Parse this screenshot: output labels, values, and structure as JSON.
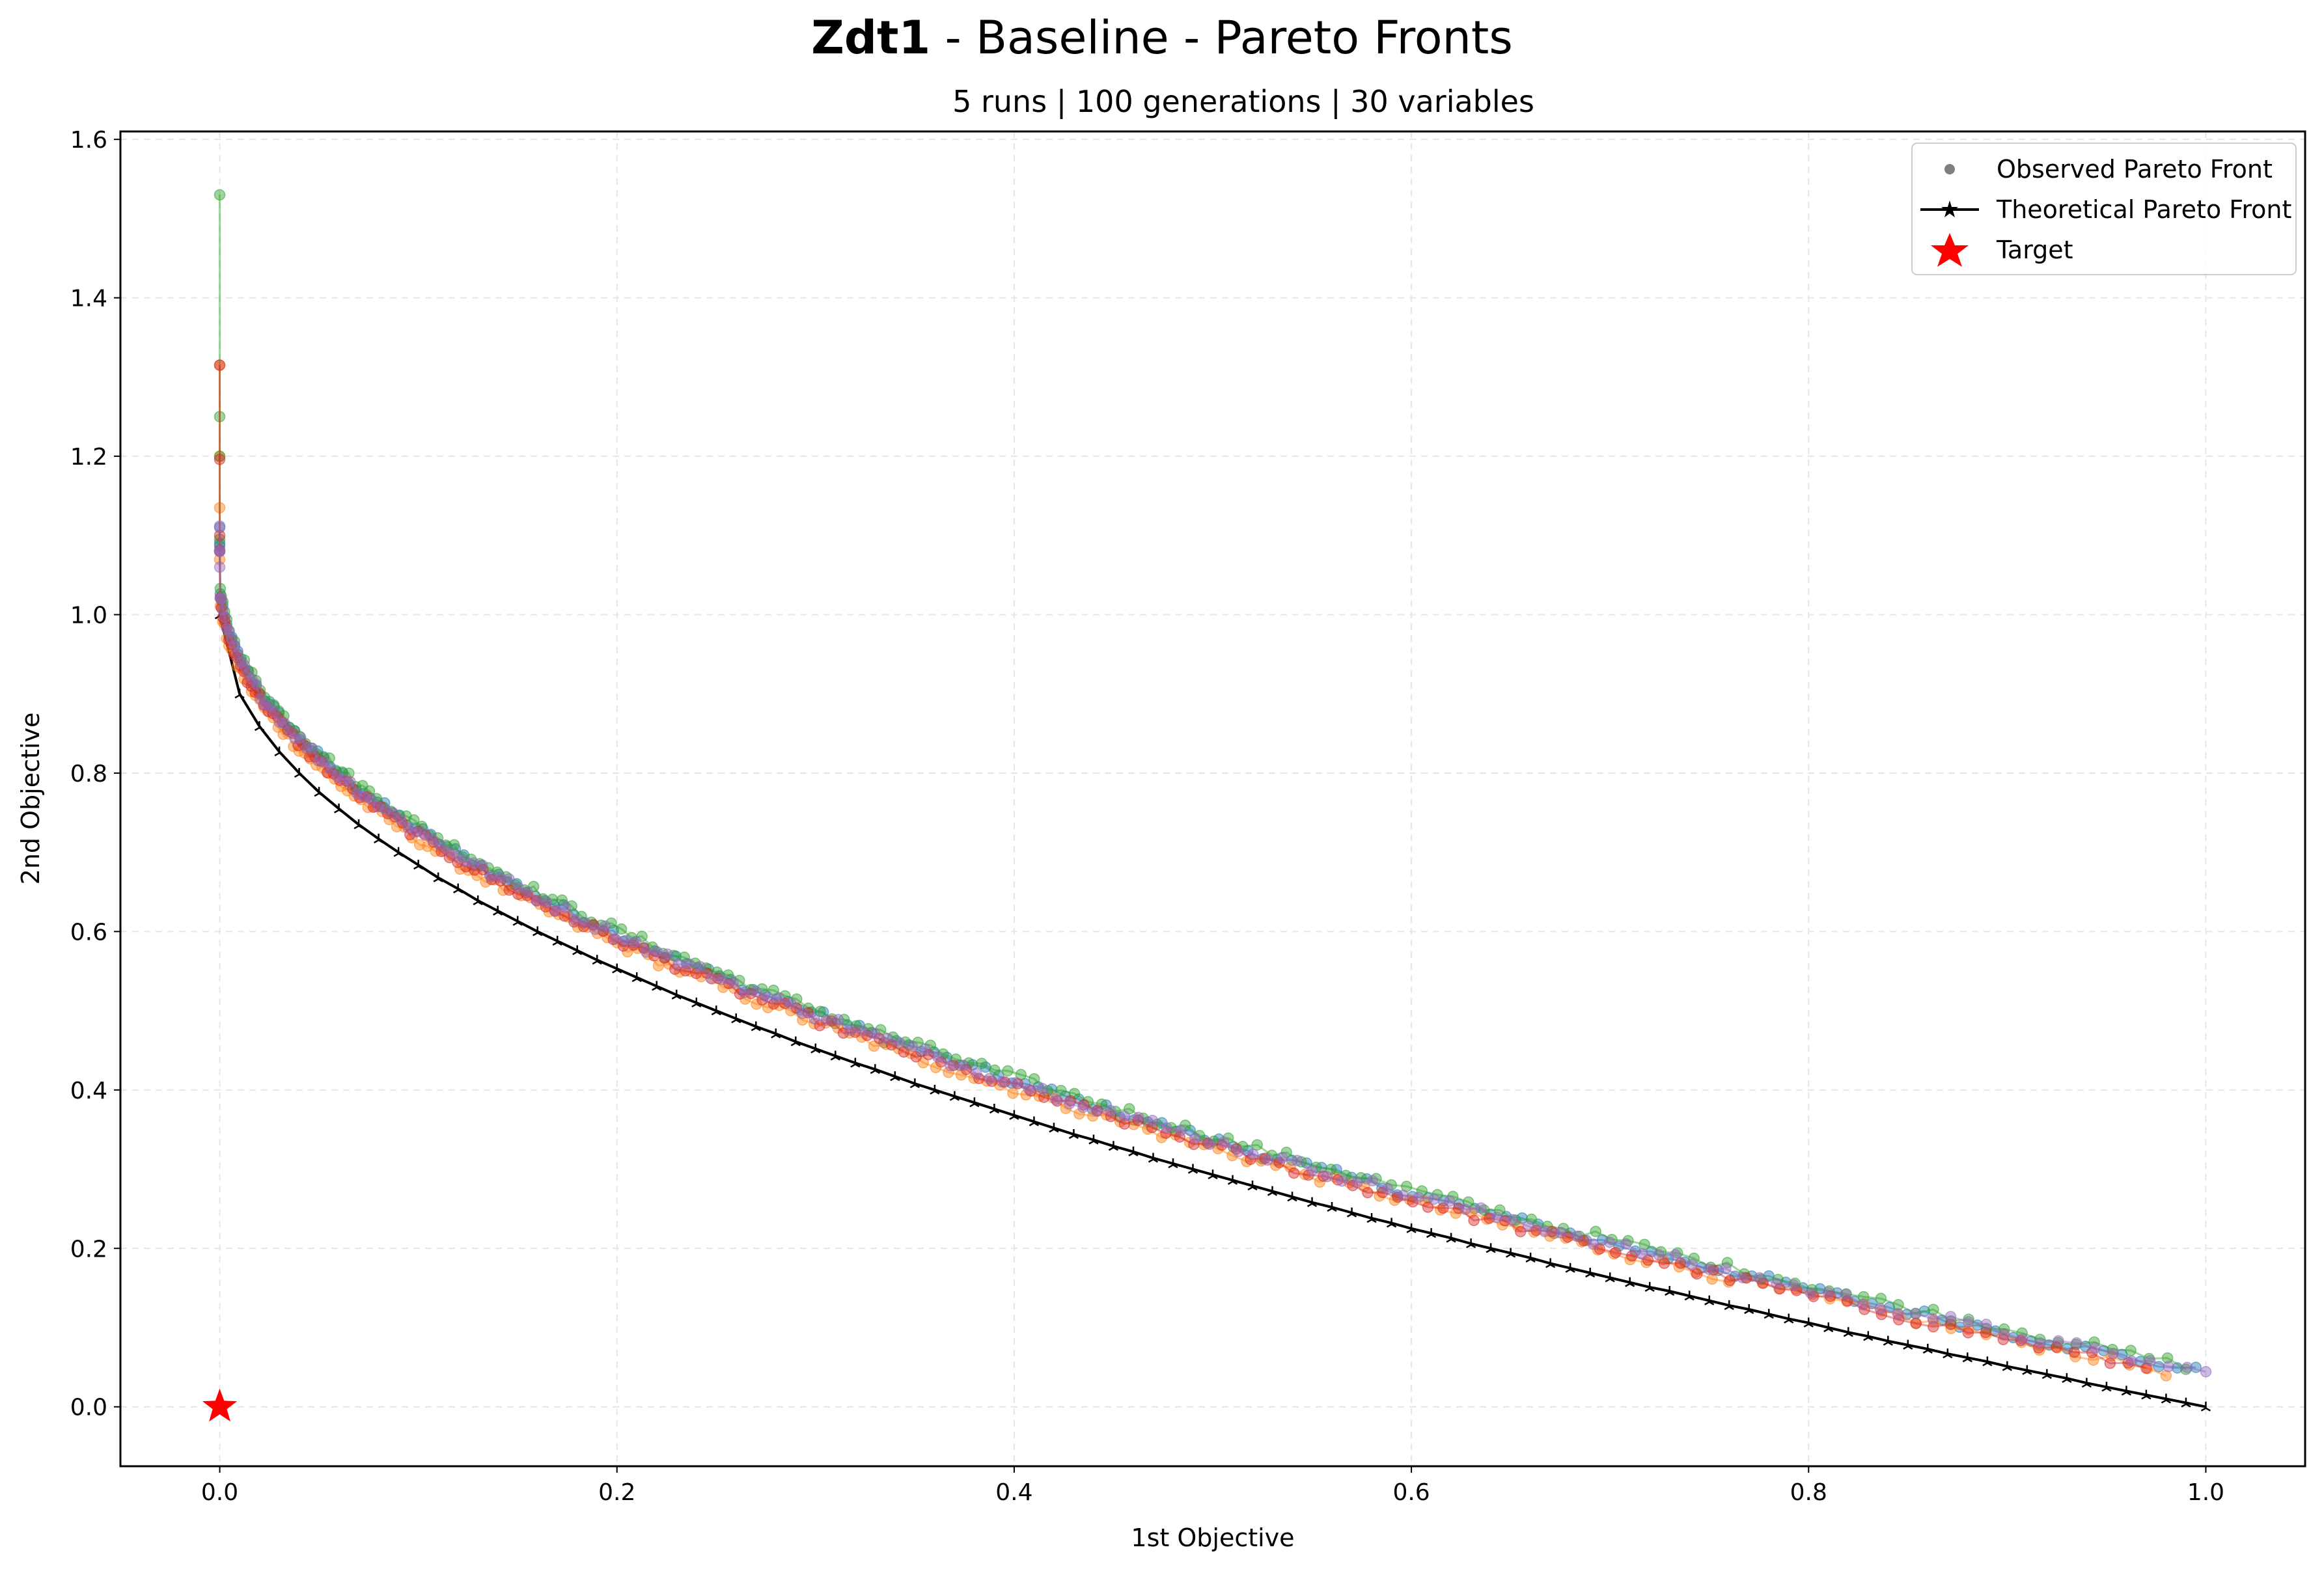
{
  "chart_data": {
    "type": "scatter",
    "title_bold": "Zdt1",
    "title_rest": " - Baseline - Pareto Fronts",
    "subtitle": "5 runs | 100 generations | 30 variables",
    "xlabel": "1st Objective",
    "ylabel": "2nd Objective",
    "xlim": [
      -0.05,
      1.05
    ],
    "ylim": [
      -0.075,
      1.61
    ],
    "xticks": [
      "0.0",
      "0.2",
      "0.4",
      "0.6",
      "0.8",
      "1.0"
    ],
    "yticks": [
      "0.0",
      "0.2",
      "0.4",
      "0.6",
      "0.8",
      "1.0",
      "1.2",
      "1.4",
      "1.6"
    ],
    "grid": true,
    "legend": {
      "position": "top-right",
      "observed": "Observed Pareto Front",
      "theoretical": "Theoretical Pareto Front",
      "target": "Target"
    },
    "target": {
      "x": 0.0,
      "y": 0.0,
      "color": "#ff0000"
    },
    "theoretical_front": {
      "color": "#000000",
      "x": [
        0,
        0.01,
        0.02,
        0.03,
        0.04,
        0.05,
        0.06,
        0.07,
        0.08,
        0.09,
        0.1,
        0.11,
        0.12,
        0.13,
        0.14,
        0.15,
        0.16,
        0.17,
        0.18,
        0.19,
        0.2,
        0.21,
        0.22,
        0.23,
        0.24,
        0.25,
        0.26,
        0.27,
        0.28,
        0.29,
        0.3,
        0.31,
        0.32,
        0.33,
        0.34,
        0.35,
        0.36,
        0.37,
        0.38,
        0.39,
        0.4,
        0.41,
        0.42,
        0.43,
        0.44,
        0.45,
        0.46,
        0.47,
        0.48,
        0.49,
        0.5,
        0.51,
        0.52,
        0.53,
        0.54,
        0.55,
        0.56,
        0.57,
        0.58,
        0.59,
        0.6,
        0.61,
        0.62,
        0.63,
        0.64,
        0.65,
        0.66,
        0.67,
        0.68,
        0.69,
        0.7,
        0.71,
        0.72,
        0.73,
        0.74,
        0.75,
        0.76,
        0.77,
        0.78,
        0.79,
        0.8,
        0.81,
        0.82,
        0.83,
        0.84,
        0.85,
        0.86,
        0.87,
        0.88,
        0.89,
        0.9,
        0.91,
        0.92,
        0.93,
        0.94,
        0.95,
        0.96,
        0.97,
        0.98,
        0.99,
        1.0
      ],
      "y": [
        1.0,
        0.9,
        0.859,
        0.827,
        0.8,
        0.776,
        0.755,
        0.735,
        0.717,
        0.7,
        0.684,
        0.668,
        0.654,
        0.639,
        0.626,
        0.613,
        0.6,
        0.588,
        0.576,
        0.564,
        0.553,
        0.542,
        0.531,
        0.52,
        0.51,
        0.5,
        0.49,
        0.48,
        0.471,
        0.461,
        0.452,
        0.443,
        0.434,
        0.426,
        0.417,
        0.408,
        0.4,
        0.392,
        0.384,
        0.376,
        0.368,
        0.36,
        0.352,
        0.344,
        0.337,
        0.329,
        0.322,
        0.314,
        0.307,
        0.3,
        0.293,
        0.286,
        0.279,
        0.272,
        0.265,
        0.258,
        0.252,
        0.245,
        0.238,
        0.232,
        0.225,
        0.219,
        0.213,
        0.206,
        0.2,
        0.194,
        0.188,
        0.181,
        0.175,
        0.169,
        0.163,
        0.157,
        0.151,
        0.146,
        0.14,
        0.134,
        0.128,
        0.123,
        0.117,
        0.111,
        0.106,
        0.1,
        0.094,
        0.089,
        0.083,
        0.078,
        0.073,
        0.067,
        0.062,
        0.057,
        0.051,
        0.046,
        0.041,
        0.036,
        0.03,
        0.025,
        0.02,
        0.015,
        0.01,
        0.005,
        0.0
      ]
    },
    "runs": [
      {
        "color": "#1f77b4",
        "spike_y": [
          1.11,
          1.09,
          1.08
        ],
        "offset": 0.045,
        "x_end": 0.995,
        "y_end": 0.04
      },
      {
        "color": "#ff7f0e",
        "spike_y": [
          1.315,
          1.2,
          1.135
        ],
        "offset": 0.032,
        "x_end": 0.98,
        "y_end": 0.033
      },
      {
        "color": "#2ca02c",
        "spike_y": [
          1.53,
          1.25,
          1.2
        ],
        "offset": 0.05,
        "x_end": 0.99,
        "y_end": 0.045
      },
      {
        "color": "#d62728",
        "spike_y": [
          1.315,
          1.196,
          1.1
        ],
        "offset": 0.038,
        "x_end": 0.97,
        "y_end": 0.032
      },
      {
        "color": "#9467bd",
        "spike_y": [
          1.112,
          1.08,
          1.06
        ],
        "offset": 0.043,
        "x_end": 1.0,
        "y_end": 0.04
      }
    ]
  }
}
